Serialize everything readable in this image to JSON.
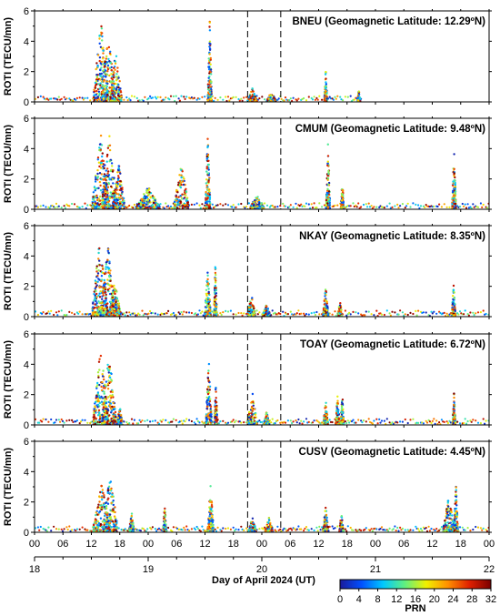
{
  "chart_data": {
    "type": "scatter",
    "xlabel": "Day of April 2024 (UT)",
    "ylabel": "ROTI (TECU/mn)",
    "ylim": [
      0,
      6
    ],
    "yticks": [
      "0",
      "2",
      "4",
      "6"
    ],
    "xlim_hours": [
      0,
      96
    ],
    "hour_ticks": [
      "00",
      "06",
      "12",
      "18",
      "00",
      "06",
      "12",
      "18",
      "00",
      "06",
      "12",
      "18",
      "00",
      "06",
      "12",
      "18",
      "00"
    ],
    "day_ticks": [
      "18",
      "19",
      "20",
      "21",
      "22"
    ],
    "vertical_dashed_lines_hours": [
      45,
      52
    ],
    "colorbar": {
      "label": "PRN",
      "range": [
        0,
        32
      ],
      "ticks": [
        "0",
        "4",
        "8",
        "12",
        "16",
        "20",
        "24",
        "28",
        "32"
      ],
      "colors": [
        "#1a1a9a",
        "#0050ff",
        "#00c8ff",
        "#60f080",
        "#f0f000",
        "#ff9000",
        "#e02000",
        "#7a0000"
      ]
    },
    "panels": [
      {
        "title": "BNEU (Geomagnetic Latitude: 12.29ºN)",
        "data_end_hour": 69,
        "bursts": [
          {
            "center": 14.0,
            "width": 1.5,
            "peak": 5.6
          },
          {
            "center": 15.6,
            "width": 1.5,
            "peak": 4.5
          },
          {
            "center": 17.2,
            "width": 1.2,
            "peak": 3.5
          },
          {
            "center": 37.0,
            "width": 0.4,
            "peak": 5.5
          },
          {
            "center": 46.0,
            "width": 1.0,
            "peak": 0.9
          },
          {
            "center": 50.0,
            "width": 1.0,
            "peak": 0.7
          },
          {
            "center": 61.5,
            "width": 0.3,
            "peak": 2.3
          },
          {
            "center": 68.5,
            "width": 0.3,
            "peak": 0.8
          }
        ]
      },
      {
        "title": "CMUM (Geomagnetic Latitude: 9.48ºN)",
        "data_end_hour": 96,
        "bursts": [
          {
            "center": 14.0,
            "width": 1.8,
            "peak": 5.0
          },
          {
            "center": 15.8,
            "width": 1.6,
            "peak": 5.0
          },
          {
            "center": 17.8,
            "width": 1.3,
            "peak": 3.0
          },
          {
            "center": 24.0,
            "width": 2.5,
            "peak": 1.5
          },
          {
            "center": 31.0,
            "width": 1.5,
            "peak": 3.2
          },
          {
            "center": 36.6,
            "width": 0.5,
            "peak": 5.0
          },
          {
            "center": 47.0,
            "width": 1.5,
            "peak": 1.0
          },
          {
            "center": 62.0,
            "width": 0.4,
            "peak": 4.5
          },
          {
            "center": 65.0,
            "width": 0.3,
            "peak": 2.0
          },
          {
            "center": 88.6,
            "width": 0.4,
            "peak": 4.0
          }
        ]
      },
      {
        "title": "NKAY (Geomagnetic Latitude: 8.35ºN)",
        "data_end_hour": 96,
        "bursts": [
          {
            "center": 13.8,
            "width": 1.6,
            "peak": 5.4
          },
          {
            "center": 15.5,
            "width": 1.6,
            "peak": 4.8
          },
          {
            "center": 17.0,
            "width": 1.2,
            "peak": 2.5
          },
          {
            "center": 36.6,
            "width": 0.6,
            "peak": 3.4
          },
          {
            "center": 38.2,
            "width": 0.3,
            "peak": 3.8
          },
          {
            "center": 45.8,
            "width": 0.8,
            "peak": 1.5
          },
          {
            "center": 49.0,
            "width": 0.8,
            "peak": 0.9
          },
          {
            "center": 61.5,
            "width": 0.6,
            "peak": 1.9
          },
          {
            "center": 64.5,
            "width": 0.4,
            "peak": 1.3
          },
          {
            "center": 88.5,
            "width": 0.4,
            "peak": 2.4
          }
        ]
      },
      {
        "title": "TOAY (Geomagnetic Latitude: 6.72ºN)",
        "data_end_hour": 96,
        "bursts": [
          {
            "center": 14.0,
            "width": 1.6,
            "peak": 5.3
          },
          {
            "center": 15.7,
            "width": 1.5,
            "peak": 5.0
          },
          {
            "center": 18.0,
            "width": 0.6,
            "peak": 1.2
          },
          {
            "center": 36.8,
            "width": 0.6,
            "peak": 4.3
          },
          {
            "center": 38.3,
            "width": 0.3,
            "peak": 2.8
          },
          {
            "center": 46.0,
            "width": 1.0,
            "peak": 2.2
          },
          {
            "center": 49.0,
            "width": 0.6,
            "peak": 0.9
          },
          {
            "center": 61.5,
            "width": 0.5,
            "peak": 1.7
          },
          {
            "center": 64.0,
            "width": 0.4,
            "peak": 1.9
          },
          {
            "center": 65.0,
            "width": 0.3,
            "peak": 2.3
          },
          {
            "center": 88.6,
            "width": 0.3,
            "peak": 2.2
          }
        ]
      },
      {
        "title": "CUSV (Geomagnetic Latitude: 4.45ºN)",
        "data_end_hour": 96,
        "bursts": [
          {
            "center": 14.2,
            "width": 1.8,
            "peak": 3.3
          },
          {
            "center": 16.0,
            "width": 1.5,
            "peak": 4.0
          },
          {
            "center": 20.5,
            "width": 0.5,
            "peak": 1.5
          },
          {
            "center": 27.5,
            "width": 0.3,
            "peak": 2.0
          },
          {
            "center": 37.2,
            "width": 0.6,
            "peak": 3.2
          },
          {
            "center": 46.0,
            "width": 0.8,
            "peak": 1.0
          },
          {
            "center": 49.5,
            "width": 0.8,
            "peak": 1.0
          },
          {
            "center": 61.5,
            "width": 0.6,
            "peak": 1.7
          },
          {
            "center": 64.8,
            "width": 0.4,
            "peak": 1.4
          },
          {
            "center": 87.5,
            "width": 1.2,
            "peak": 2.5
          },
          {
            "center": 89.0,
            "width": 0.4,
            "peak": 3.2
          }
        ]
      }
    ]
  }
}
